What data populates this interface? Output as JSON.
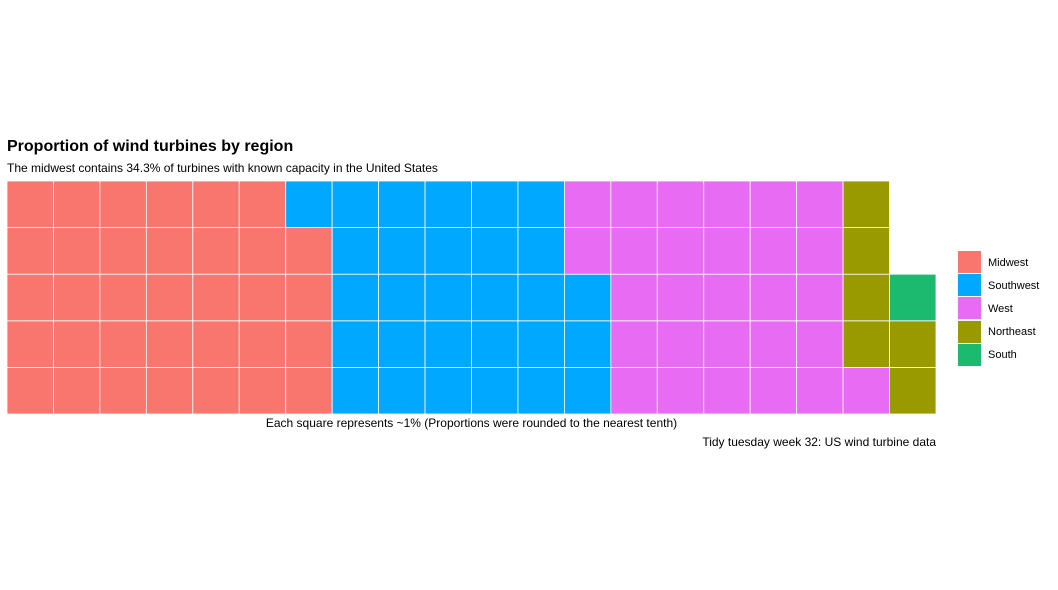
{
  "chart_data": {
    "type": "waffle",
    "title": "Proportion of wind turbines by region",
    "subtitle": "The midwest contains 34.3% of turbines with known capacity in the United States",
    "xlabel": "Each square represents ~1% (Proportions were rounded to the nearest tenth)",
    "caption": "Tidy tuesday week 32: US wind turbine data",
    "grid": {
      "rows": 5,
      "columns": 20,
      "fill_order": "column-wise, bottom to top, left to right"
    },
    "legend_position": "right",
    "series": [
      {
        "name": "Midwest",
        "squares": 34,
        "color": "#F8766D"
      },
      {
        "name": "Southwest",
        "squares": 29,
        "color": "#00A9FF"
      },
      {
        "name": "West",
        "squares": 28,
        "color": "#E76BF3"
      },
      {
        "name": "Northeast",
        "squares": 6,
        "color": "#999900"
      },
      {
        "name": "South",
        "squares": 1,
        "color": "#1CBA6E"
      }
    ]
  }
}
